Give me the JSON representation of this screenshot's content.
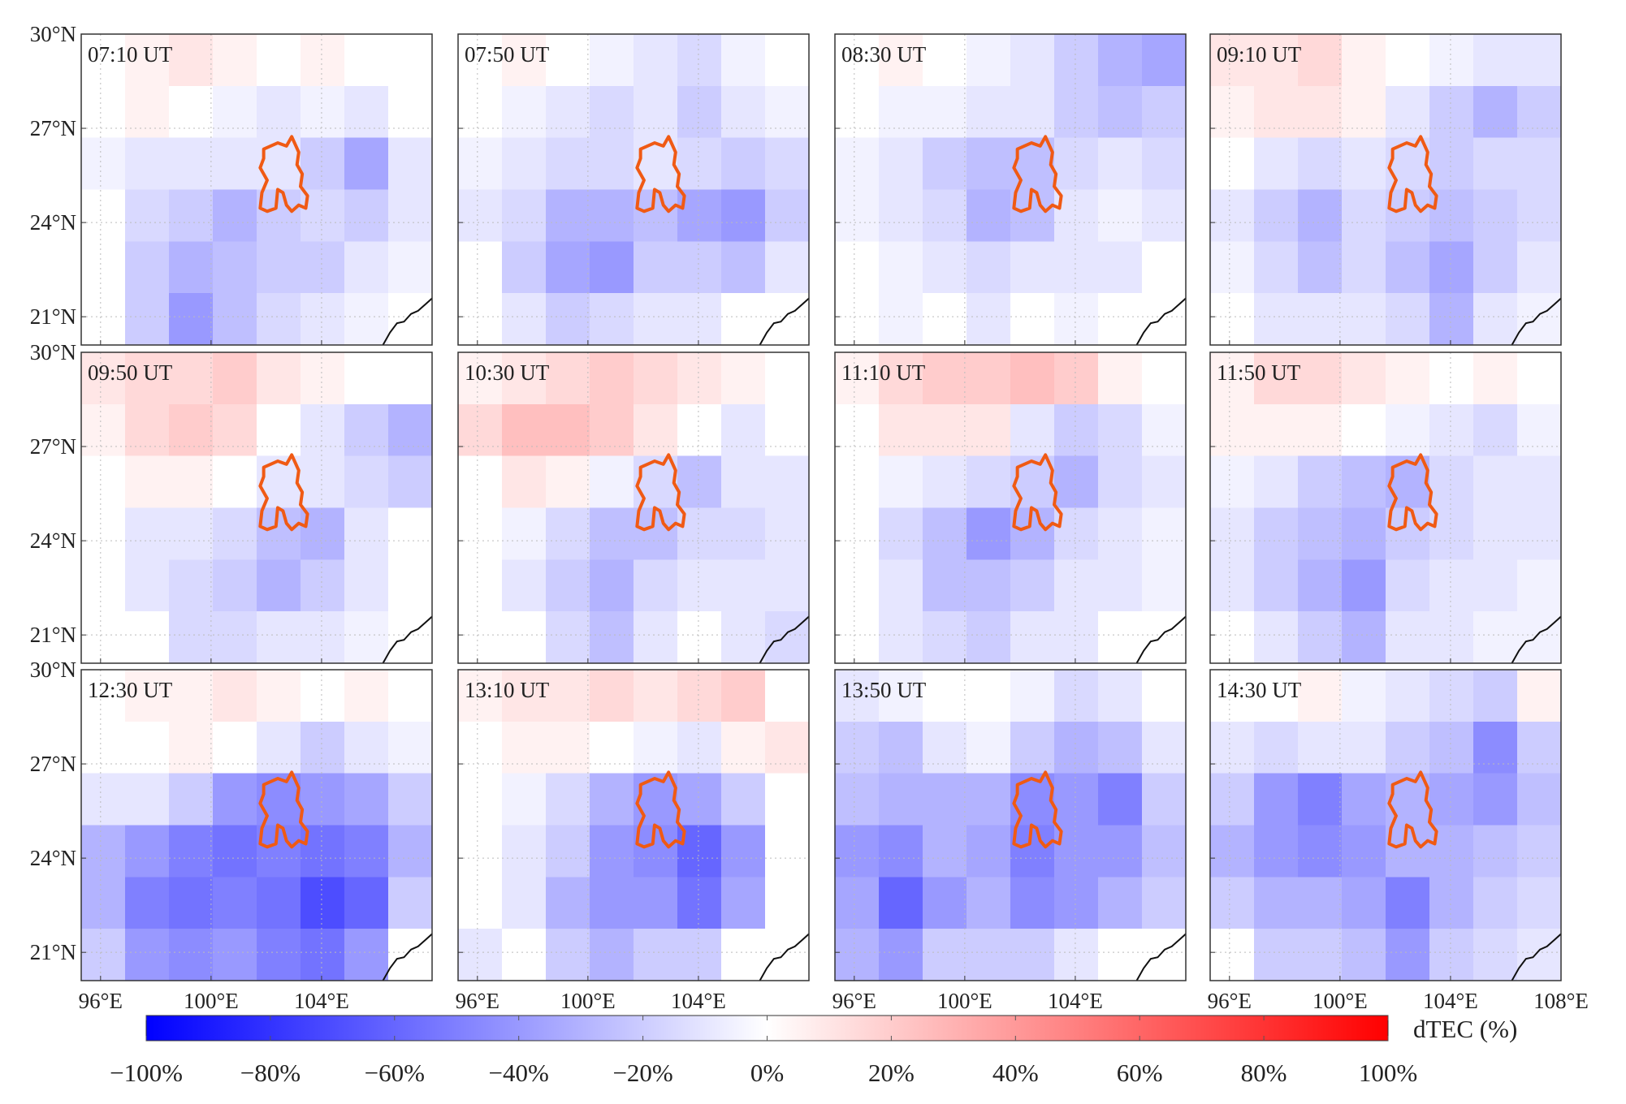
{
  "chart_data": {
    "type": "heatmap",
    "xlim": [
      95.3,
      108
    ],
    "ylim": [
      20.1,
      30
    ],
    "xticks": [
      {
        "value": 96,
        "label": "96°E"
      },
      {
        "value": 100,
        "label": "100°E"
      },
      {
        "value": 104,
        "label": "104°E"
      },
      {
        "value": 108,
        "label": "108°E"
      }
    ],
    "yticks": [
      {
        "value": 30,
        "label": "30°N"
      },
      {
        "value": 27,
        "label": "27°N"
      },
      {
        "value": 24,
        "label": "24°N"
      },
      {
        "value": 21,
        "label": "21°N"
      }
    ],
    "grid": true,
    "colormap": [
      "#0000ff",
      "#ffffff",
      "#ff0000"
    ],
    "colorbar": {
      "label": "dTEC (%)",
      "lim": [
        -100,
        100
      ],
      "ticks": [
        {
          "value": -100,
          "label": "−100%"
        },
        {
          "value": -80,
          "label": "−80%"
        },
        {
          "value": -60,
          "label": "−60%"
        },
        {
          "value": -40,
          "label": "−40%"
        },
        {
          "value": -20,
          "label": "−20%"
        },
        {
          "value": 0,
          "label": "0%"
        },
        {
          "value": 20,
          "label": "20%"
        },
        {
          "value": 40,
          "label": "40%"
        },
        {
          "value": 60,
          "label": "60%"
        },
        {
          "value": 80,
          "label": "80%"
        },
        {
          "value": 100,
          "label": "100%"
        }
      ]
    },
    "panels": [
      {
        "title": "07:10 UT",
        "values": [
          [
            null,
            5,
            10,
            5,
            0,
            5,
            null,
            null
          ],
          [
            null,
            5,
            0,
            -5,
            -10,
            -5,
            -10,
            null
          ],
          [
            -5,
            -10,
            -10,
            -10,
            -10,
            -20,
            -35,
            -10
          ],
          [
            null,
            -15,
            -20,
            -30,
            -20,
            -15,
            -20,
            -10
          ],
          [
            null,
            -20,
            -30,
            -25,
            -20,
            -20,
            -10,
            -5
          ],
          [
            null,
            -20,
            -40,
            -25,
            -15,
            -10,
            -5,
            null
          ]
        ]
      },
      {
        "title": "07:50 UT",
        "values": [
          [
            0,
            5,
            0,
            -5,
            -10,
            -15,
            -5,
            null
          ],
          [
            0,
            -5,
            -10,
            -15,
            -10,
            -20,
            -10,
            -5
          ],
          [
            -5,
            -10,
            -15,
            -15,
            -10,
            -15,
            -20,
            -15
          ],
          [
            -10,
            -15,
            -30,
            -30,
            -25,
            -35,
            -40,
            -20
          ],
          [
            null,
            -20,
            -35,
            -40,
            -20,
            -20,
            -25,
            -10
          ],
          [
            null,
            -10,
            -20,
            -15,
            -10,
            -10,
            null,
            null
          ]
        ]
      },
      {
        "title": "08:30 UT",
        "values": [
          [
            null,
            5,
            0,
            -5,
            -10,
            -20,
            -30,
            -35
          ],
          [
            null,
            -5,
            -5,
            -10,
            -10,
            -20,
            -25,
            -20
          ],
          [
            -5,
            -10,
            -20,
            -25,
            -25,
            -15,
            -10,
            -15
          ],
          [
            -5,
            -10,
            -15,
            -30,
            -25,
            -10,
            -5,
            -10
          ],
          [
            null,
            -5,
            -10,
            -15,
            -10,
            -10,
            -10,
            null
          ],
          [
            null,
            -5,
            null,
            -10,
            null,
            -5,
            null,
            null
          ]
        ]
      },
      {
        "title": "09:10 UT",
        "values": [
          [
            10,
            10,
            15,
            5,
            0,
            -5,
            -10,
            -10
          ],
          [
            5,
            10,
            10,
            5,
            -10,
            -20,
            -30,
            -20
          ],
          [
            0,
            -10,
            -15,
            -10,
            -15,
            -20,
            -15,
            -15
          ],
          [
            -10,
            -20,
            -30,
            -15,
            -20,
            -25,
            -20,
            -15
          ],
          [
            -5,
            -15,
            -25,
            -15,
            -25,
            -35,
            -20,
            -10
          ],
          [
            null,
            -10,
            -10,
            -10,
            -15,
            -30,
            -10,
            -5
          ]
        ]
      },
      {
        "title": "09:50 UT",
        "values": [
          [
            10,
            15,
            15,
            20,
            10,
            5,
            0,
            null
          ],
          [
            5,
            15,
            20,
            15,
            0,
            -10,
            -20,
            -30
          ],
          [
            null,
            5,
            5,
            0,
            -10,
            -10,
            -15,
            -20
          ],
          [
            null,
            -10,
            -10,
            -15,
            -25,
            -30,
            -10,
            null
          ],
          [
            null,
            -10,
            -15,
            -20,
            -30,
            -20,
            -10,
            null
          ],
          [
            null,
            null,
            -15,
            -15,
            -10,
            -10,
            -5,
            null
          ]
        ]
      },
      {
        "title": "10:30 UT",
        "values": [
          [
            5,
            10,
            15,
            20,
            15,
            10,
            5,
            null
          ],
          [
            15,
            25,
            25,
            20,
            10,
            0,
            -10,
            null
          ],
          [
            0,
            10,
            5,
            -5,
            -15,
            -25,
            -10,
            -10
          ],
          [
            null,
            -5,
            -15,
            -25,
            -25,
            -15,
            -15,
            -10
          ],
          [
            null,
            -10,
            -20,
            -30,
            -15,
            -10,
            -10,
            -10
          ],
          [
            null,
            null,
            -15,
            -25,
            -10,
            null,
            -10,
            -15
          ]
        ]
      },
      {
        "title": "11:10 UT",
        "values": [
          [
            5,
            15,
            20,
            20,
            25,
            20,
            5,
            null
          ],
          [
            0,
            10,
            10,
            10,
            -10,
            -20,
            -15,
            -5
          ],
          [
            null,
            -5,
            -10,
            -15,
            -20,
            -30,
            -15,
            -10
          ],
          [
            null,
            -15,
            -25,
            -40,
            -30,
            -15,
            -10,
            -5
          ],
          [
            null,
            -10,
            -25,
            -25,
            -20,
            -10,
            -10,
            -5
          ],
          [
            null,
            -10,
            -15,
            -20,
            -10,
            -10,
            null,
            null
          ]
        ]
      },
      {
        "title": "11:50 UT",
        "values": [
          [
            5,
            15,
            15,
            10,
            5,
            0,
            5,
            null
          ],
          [
            5,
            5,
            5,
            0,
            -5,
            -10,
            -15,
            -5
          ],
          [
            -5,
            -10,
            -20,
            -25,
            -30,
            -15,
            -10,
            -10
          ],
          [
            -10,
            -20,
            -25,
            -30,
            -20,
            -15,
            -10,
            -10
          ],
          [
            -10,
            -20,
            -30,
            -40,
            -15,
            -10,
            -10,
            -5
          ],
          [
            null,
            -10,
            -20,
            -30,
            -10,
            -10,
            -5,
            -5
          ]
        ]
      },
      {
        "title": "12:30 UT",
        "values": [
          [
            null,
            5,
            5,
            10,
            5,
            0,
            5,
            null
          ],
          [
            0,
            0,
            5,
            0,
            -10,
            -20,
            -10,
            -5
          ],
          [
            -10,
            -10,
            -20,
            -40,
            -45,
            -40,
            -35,
            -20
          ],
          [
            -30,
            -40,
            -50,
            -55,
            -50,
            -55,
            -50,
            -30
          ],
          [
            -30,
            -50,
            -55,
            -50,
            -55,
            -70,
            -60,
            -20
          ],
          [
            -20,
            -40,
            -45,
            -40,
            -50,
            -55,
            -40,
            null
          ]
        ]
      },
      {
        "title": "13:10 UT",
        "values": [
          [
            5,
            10,
            10,
            15,
            10,
            15,
            20,
            null
          ],
          [
            0,
            5,
            5,
            0,
            -5,
            -10,
            5,
            10
          ],
          [
            null,
            -5,
            -15,
            -30,
            -40,
            -35,
            -20,
            null
          ],
          [
            null,
            -10,
            -20,
            -40,
            -45,
            -60,
            -40,
            null
          ],
          [
            null,
            -10,
            -30,
            -40,
            -40,
            -55,
            -35,
            null
          ],
          [
            -10,
            null,
            -20,
            -30,
            -20,
            -20,
            null,
            null
          ]
        ]
      },
      {
        "title": "13:50 UT",
        "values": [
          [
            -10,
            -5,
            0,
            0,
            -5,
            -15,
            -10,
            null
          ],
          [
            -20,
            -25,
            -10,
            -5,
            -20,
            -30,
            -25,
            -10
          ],
          [
            -25,
            -30,
            -30,
            -30,
            -45,
            -40,
            -50,
            -20
          ],
          [
            -40,
            -45,
            -30,
            -35,
            -50,
            -40,
            -40,
            -25
          ],
          [
            -35,
            -60,
            -40,
            -30,
            -45,
            -40,
            -30,
            -20
          ],
          [
            -30,
            -40,
            -20,
            -20,
            -20,
            -10,
            null,
            null
          ]
        ]
      },
      {
        "title": "14:30 UT",
        "values": [
          [
            0,
            0,
            5,
            -5,
            -10,
            -15,
            -20,
            5
          ],
          [
            -10,
            -15,
            -10,
            -10,
            -20,
            -25,
            -45,
            -20
          ],
          [
            -20,
            -40,
            -50,
            -35,
            -30,
            -35,
            -40,
            -25
          ],
          [
            -30,
            -40,
            -45,
            -40,
            -30,
            -30,
            -25,
            -20
          ],
          [
            -20,
            -30,
            -30,
            -35,
            -50,
            -30,
            -20,
            -15
          ],
          [
            null,
            -20,
            -20,
            -25,
            -40,
            -20,
            -15,
            -10
          ]
        ]
      }
    ]
  }
}
